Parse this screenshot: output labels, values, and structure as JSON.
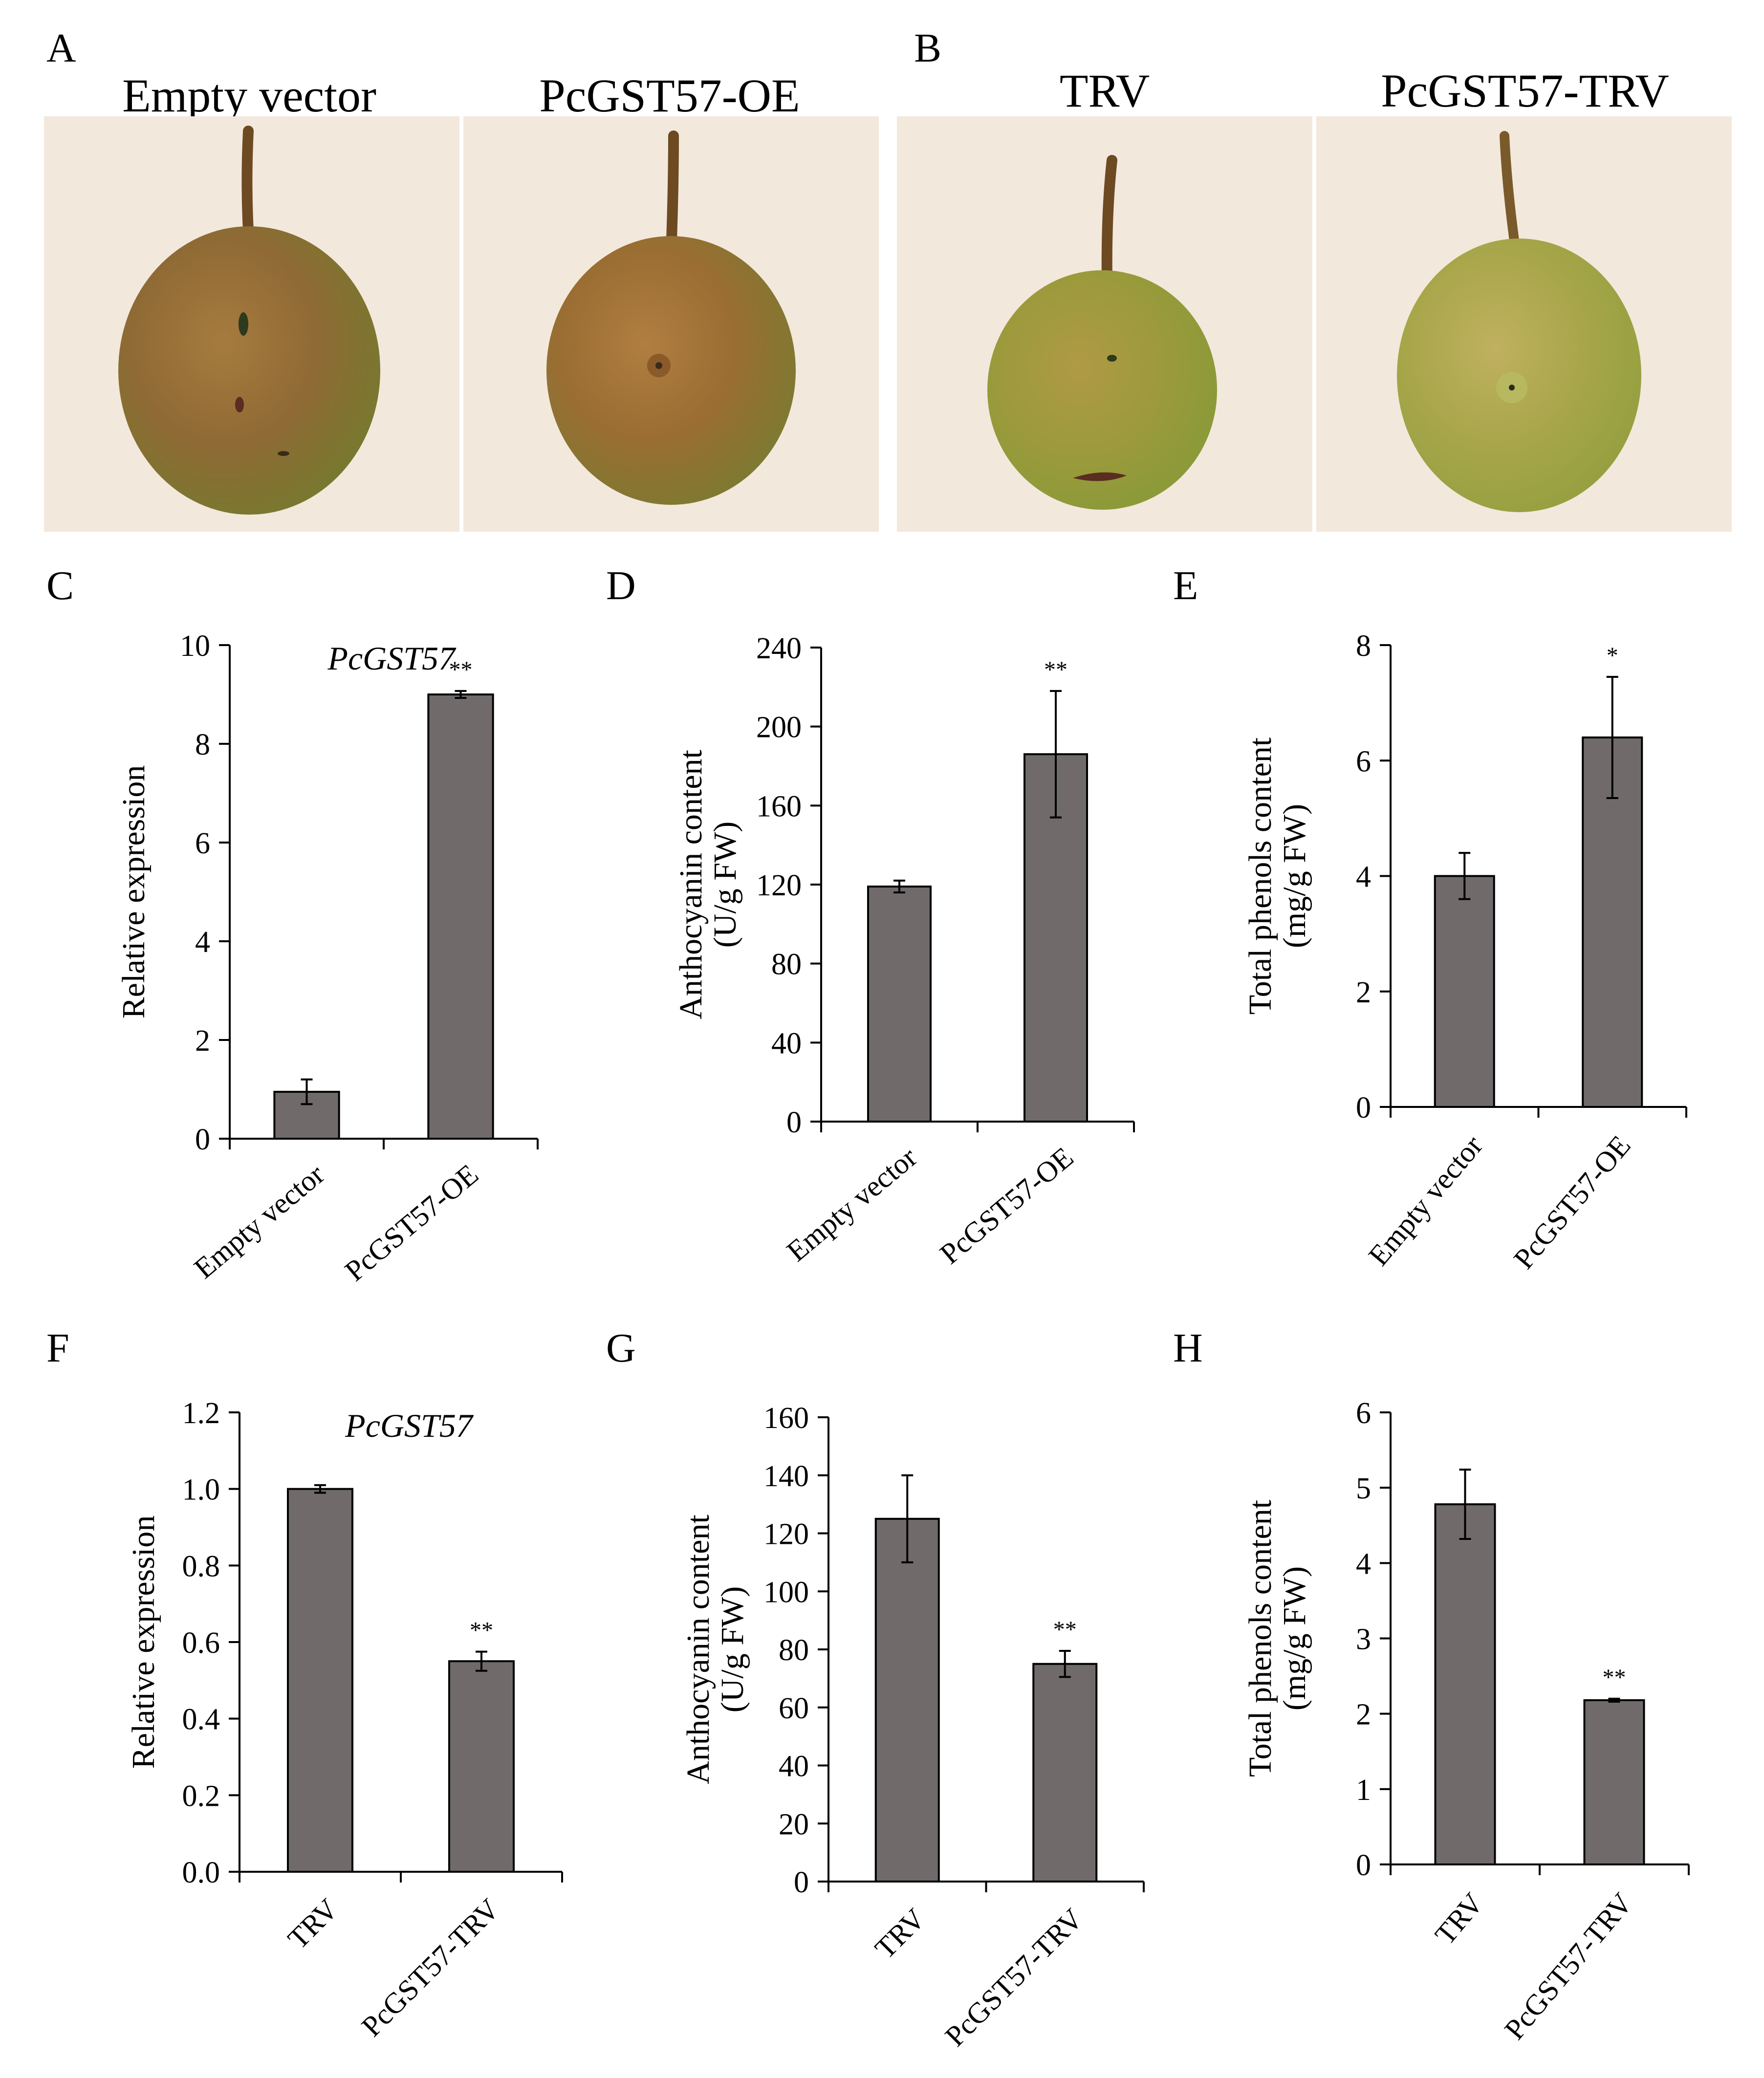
{
  "panels": {
    "A": {
      "letter": "A",
      "labels": [
        "Empty vector",
        "PcGST57-OE"
      ]
    },
    "B": {
      "letter": "B",
      "labels": [
        "TRV",
        "PcGST57-TRV"
      ]
    }
  },
  "colors": {
    "bar": "#706a6b",
    "photo_bg": "#f3e8dc",
    "axis": "#000000"
  },
  "chart_data": [
    {
      "id": "C",
      "type": "bar",
      "panel_letter": "C",
      "title": "PcGST57",
      "xlabel": "",
      "ylabel": [
        "Relative  expression"
      ],
      "categories": [
        "Empty vector",
        "PcGST57-OE"
      ],
      "values": [
        0.95,
        9.0
      ],
      "errors": [
        0.25,
        0.07
      ],
      "significance": [
        "",
        "**"
      ],
      "ylim": [
        0,
        10
      ],
      "yticks": [
        "0",
        "2",
        "4",
        "6",
        "8",
        "10"
      ],
      "tick_rotation": -40
    },
    {
      "id": "D",
      "type": "bar",
      "panel_letter": "D",
      "title": "",
      "xlabel": "",
      "ylabel": [
        "Anthocyanin content",
        "(U/g FW)"
      ],
      "categories": [
        "Empty vector",
        "PcGST57-OE"
      ],
      "values": [
        119,
        186
      ],
      "errors": [
        3,
        32
      ],
      "significance": [
        "",
        "**"
      ],
      "ylim": [
        0,
        240
      ],
      "yticks": [
        "0",
        "40",
        "80",
        "120",
        "160",
        "200",
        "240"
      ],
      "tick_rotation": -40
    },
    {
      "id": "E",
      "type": "bar",
      "panel_letter": "E",
      "title": "",
      "xlabel": "",
      "ylabel": [
        "Total phenols content",
        "(mg/g FW)"
      ],
      "categories": [
        "Empty vector",
        "PcGST57-OE"
      ],
      "values": [
        4.0,
        6.4
      ],
      "errors": [
        0.4,
        1.05
      ],
      "significance": [
        "",
        "*"
      ],
      "ylim": [
        0,
        8
      ],
      "yticks": [
        "0",
        "2",
        "4",
        "6",
        "8"
      ],
      "tick_rotation": -50
    },
    {
      "id": "F",
      "type": "bar",
      "panel_letter": "F",
      "title": "PcGST57",
      "xlabel": "",
      "ylabel": [
        "Relative  expression"
      ],
      "categories": [
        "TRV",
        "PcGST57-TRV"
      ],
      "values": [
        1.0,
        0.55
      ],
      "errors": [
        0.01,
        0.025
      ],
      "significance": [
        "",
        "**"
      ],
      "ylim": [
        0,
        1.2
      ],
      "yticks": [
        "0.0",
        "0.2",
        "0.4",
        "0.6",
        "0.8",
        "1.0",
        "1.2"
      ],
      "tick_rotation": -45
    },
    {
      "id": "G",
      "type": "bar",
      "panel_letter": "G",
      "title": "",
      "xlabel": "",
      "ylabel": [
        "Anthocyanin content",
        "(U/g FW)"
      ],
      "categories": [
        "TRV",
        "PcGST57-TRV"
      ],
      "values": [
        125,
        75
      ],
      "errors": [
        15,
        4.5
      ],
      "significance": [
        "",
        "**"
      ],
      "ylim": [
        0,
        160
      ],
      "yticks": [
        "0",
        "20",
        "40",
        "60",
        "80",
        "100",
        "120",
        "140",
        "160"
      ],
      "tick_rotation": -45
    },
    {
      "id": "H",
      "type": "bar",
      "panel_letter": "H",
      "title": "",
      "xlabel": "",
      "ylabel": [
        "Total phenols content",
        "(mg/g FW)"
      ],
      "categories": [
        "TRV",
        "PcGST57-TRV"
      ],
      "values": [
        4.78,
        2.18
      ],
      "errors": [
        0.46,
        0.02
      ],
      "significance": [
        "",
        "**"
      ],
      "ylim": [
        0,
        6
      ],
      "yticks": [
        "0",
        "1",
        "2",
        "3",
        "4",
        "5",
        "6"
      ],
      "tick_rotation": -50
    }
  ]
}
